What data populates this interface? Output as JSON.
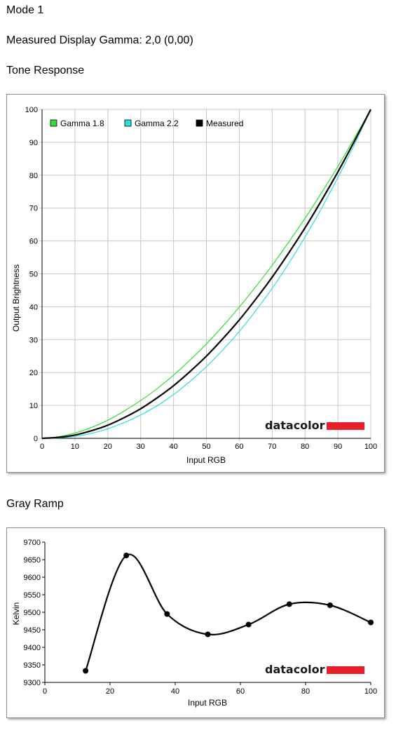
{
  "header": {
    "mode": "Mode 1",
    "measured_gamma": "Measured Display Gamma: 2,0 (0,00)",
    "tone_title": "Tone Response",
    "gray_title": "Gray Ramp"
  },
  "brand": {
    "text": "datacolor",
    "bar_color": "#e8202a"
  },
  "chart_data": [
    {
      "type": "line",
      "title": "Tone Response",
      "xlabel": "Input RGB",
      "ylabel": "Output Brightness",
      "xlim": [
        0,
        100
      ],
      "ylim": [
        0,
        100
      ],
      "xticks": [
        0,
        10,
        20,
        30,
        40,
        50,
        60,
        70,
        80,
        90,
        100
      ],
      "yticks": [
        0,
        10,
        20,
        30,
        40,
        50,
        60,
        70,
        80,
        90,
        100
      ],
      "grid": true,
      "legend_position": "top-left",
      "series": [
        {
          "name": "Gamma 1.8",
          "color": "#33dd33",
          "x": [
            0,
            5,
            10,
            15,
            20,
            25,
            30,
            35,
            40,
            45,
            50,
            55,
            60,
            65,
            70,
            75,
            80,
            85,
            90,
            95,
            100
          ],
          "y": [
            0,
            0.5,
            1.6,
            3.3,
            5.5,
            8.3,
            11.5,
            15.1,
            19.2,
            23.8,
            28.7,
            34.1,
            39.9,
            46.1,
            52.6,
            59.6,
            66.9,
            74.6,
            82.7,
            91.2,
            100
          ]
        },
        {
          "name": "Gamma 2.2",
          "color": "#33dddd",
          "x": [
            0,
            5,
            10,
            15,
            20,
            25,
            30,
            35,
            40,
            45,
            50,
            55,
            60,
            65,
            70,
            75,
            80,
            85,
            90,
            95,
            100
          ],
          "y": [
            0,
            0.1,
            0.6,
            1.5,
            2.9,
            4.8,
            7.1,
            9.9,
            13.3,
            17.3,
            21.8,
            26.9,
            32.5,
            38.8,
            45.6,
            53.1,
            61.2,
            69.9,
            79.3,
            89.3,
            100
          ]
        },
        {
          "name": "Measured",
          "color": "#000000",
          "x": [
            0,
            5,
            10,
            15,
            20,
            25,
            30,
            35,
            40,
            45,
            50,
            55,
            60,
            65,
            70,
            75,
            80,
            85,
            90,
            95,
            100
          ],
          "y": [
            0,
            0.3,
            1.0,
            2.3,
            4.0,
            6.3,
            9.0,
            12.3,
            16.0,
            20.3,
            25.0,
            30.3,
            36.0,
            42.3,
            49.0,
            56.3,
            64.0,
            72.3,
            81.0,
            90.3,
            100
          ]
        }
      ]
    },
    {
      "type": "line",
      "title": "Gray Ramp",
      "xlabel": "Input RGB",
      "ylabel": "Kelvin",
      "xlim": [
        0,
        100
      ],
      "ylim": [
        9300,
        9700
      ],
      "xticks": [
        0,
        20,
        40,
        60,
        80,
        100
      ],
      "yticks": [
        9300,
        9350,
        9400,
        9450,
        9500,
        9550,
        9600,
        9650,
        9700
      ],
      "grid": false,
      "series": [
        {
          "color": "#000000",
          "smooth": true,
          "x": [
            12.5,
            25,
            37.5,
            50,
            62.5,
            75,
            87.5,
            100
          ],
          "y": [
            9333,
            9662,
            9495,
            9437,
            9465,
            9523,
            9520,
            9471
          ]
        }
      ]
    }
  ]
}
